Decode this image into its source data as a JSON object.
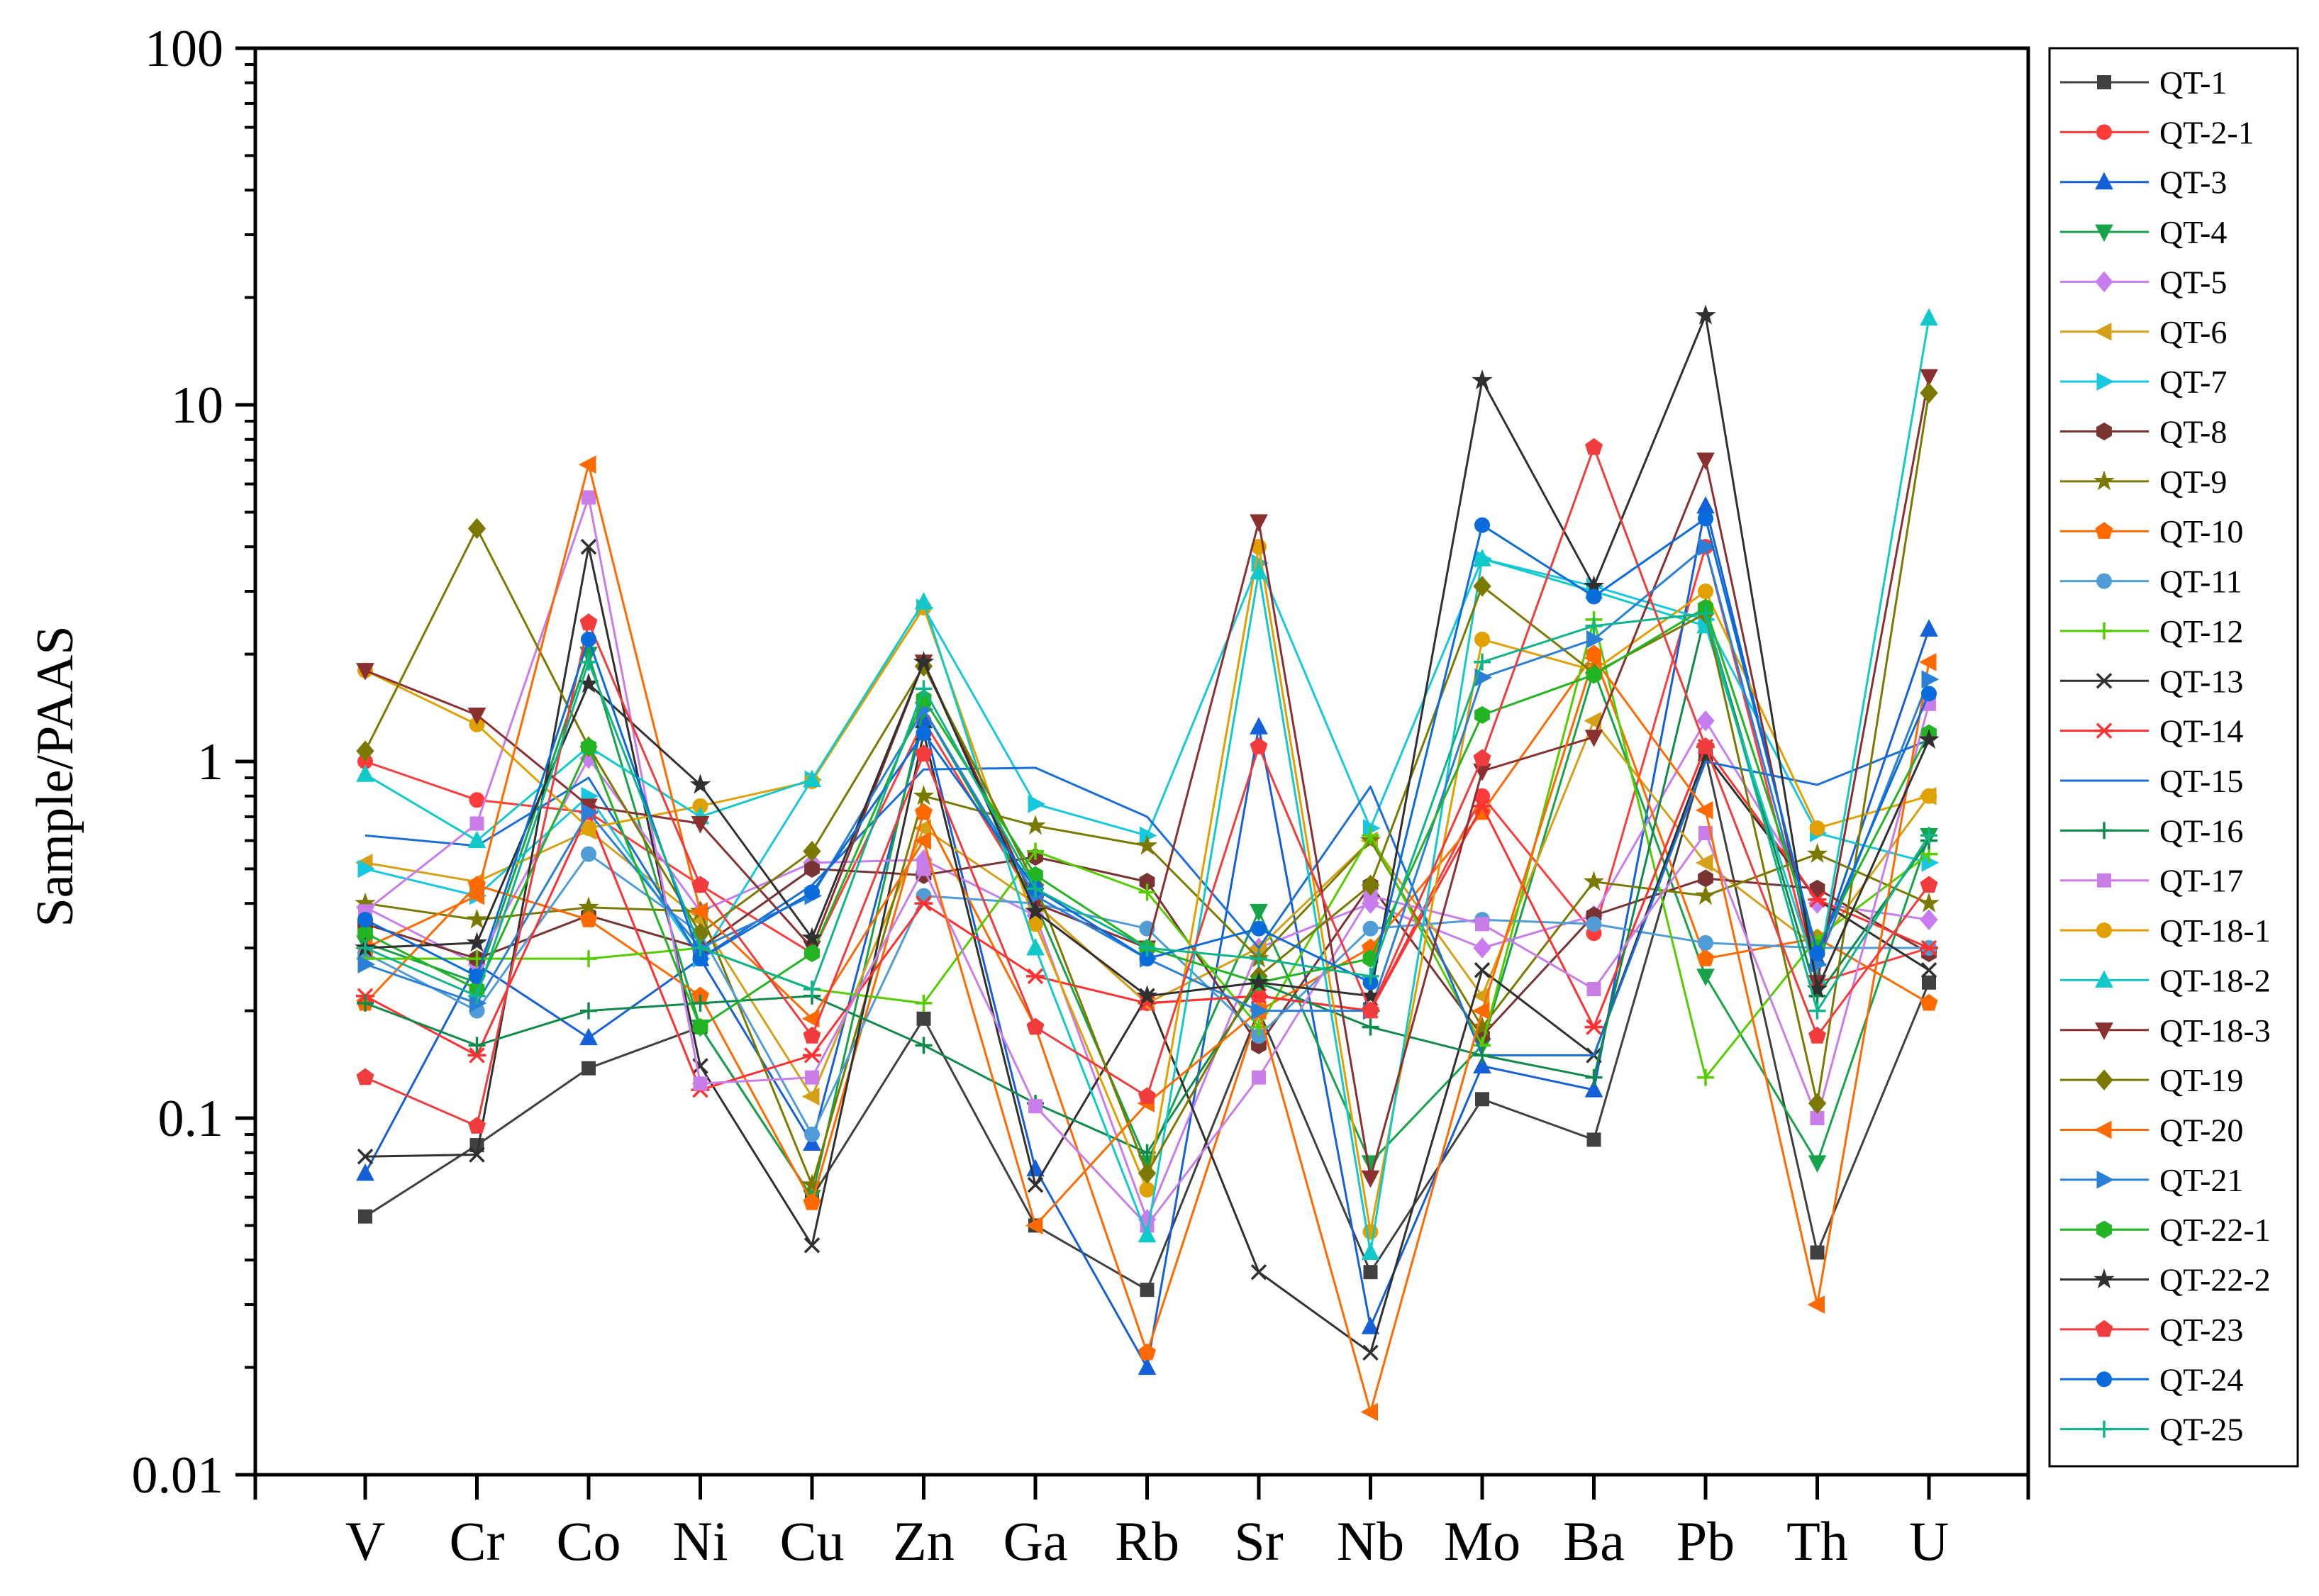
{
  "chart_data": {
    "type": "line",
    "title": "",
    "xlabel": "",
    "ylabel": "Sample/PAAS",
    "yscale": "log",
    "ylim": [
      0.01,
      100
    ],
    "ytick_labels": [
      "0.01",
      "0.1",
      "1",
      "10",
      "100"
    ],
    "categories": [
      "V",
      "Cr",
      "Co",
      "Ni",
      "Cu",
      "Zn",
      "Ga",
      "Rb",
      "Sr",
      "Nb",
      "Mo",
      "Ba",
      "Pb",
      "Th",
      "U"
    ],
    "legend_position": "right",
    "series": [
      {
        "name": "QT-1",
        "color": "#404040",
        "marker": "square",
        "values": [
          0.053,
          0.084,
          0.138,
          0.18,
          0.06,
          0.19,
          0.05,
          0.033,
          0.2,
          0.037,
          0.113,
          0.087,
          1.05,
          0.042,
          0.24
        ]
      },
      {
        "name": "QT-2-1",
        "color": "#ff3b3b",
        "marker": "circle",
        "values": [
          1.0,
          0.78,
          0.72,
          0.45,
          0.29,
          1.3,
          0.4,
          0.21,
          0.22,
          0.2,
          0.8,
          0.33,
          4.0,
          0.24,
          0.3
        ]
      },
      {
        "name": "QT-3",
        "color": "#1560d8",
        "marker": "triangle-up",
        "values": [
          0.07,
          0.27,
          0.168,
          0.28,
          0.085,
          1.3,
          0.072,
          0.02,
          1.25,
          0.026,
          0.14,
          0.12,
          5.2,
          0.28,
          2.35
        ]
      },
      {
        "name": "QT-4",
        "color": "#16a34a",
        "marker": "triangle-down",
        "values": [
          0.31,
          0.24,
          2.0,
          0.18,
          0.06,
          1.4,
          0.4,
          0.075,
          0.38,
          0.075,
          0.16,
          1.8,
          0.25,
          0.075,
          0.62
        ]
      },
      {
        "name": "QT-5",
        "color": "#c77cf0",
        "marker": "diamond",
        "values": [
          0.39,
          0.27,
          1.02,
          0.38,
          0.52,
          0.53,
          0.37,
          0.052,
          0.3,
          0.4,
          0.3,
          0.37,
          1.3,
          0.4,
          0.36
        ]
      },
      {
        "name": "QT-6",
        "color": "#d4a017",
        "marker": "triangle-left",
        "values": [
          0.52,
          0.46,
          0.64,
          0.36,
          0.115,
          0.65,
          0.4,
          0.21,
          0.3,
          0.6,
          0.22,
          1.3,
          0.52,
          0.3,
          0.8
        ]
      },
      {
        "name": "QT-7",
        "color": "#17c7e0",
        "marker": "triangle-right",
        "values": [
          0.5,
          0.42,
          0.8,
          0.28,
          0.89,
          2.7,
          0.76,
          0.62,
          3.6,
          0.65,
          3.7,
          3.1,
          2.5,
          0.63,
          0.52
        ]
      },
      {
        "name": "QT-8",
        "color": "#7a3333",
        "marker": "hexagon",
        "values": [
          0.35,
          0.28,
          0.37,
          0.3,
          0.5,
          0.48,
          0.54,
          0.46,
          0.16,
          0.45,
          0.17,
          0.37,
          0.47,
          0.44,
          0.29
        ]
      },
      {
        "name": "QT-9",
        "color": "#7a7a00",
        "marker": "star",
        "values": [
          0.4,
          0.36,
          0.39,
          0.38,
          0.065,
          0.8,
          0.66,
          0.58,
          0.28,
          0.6,
          0.18,
          0.46,
          0.42,
          0.55,
          0.4
        ]
      },
      {
        "name": "QT-10",
        "color": "#ff6a00",
        "marker": "pentagon",
        "values": [
          0.21,
          0.45,
          0.36,
          0.22,
          0.058,
          0.72,
          0.18,
          0.022,
          0.2,
          0.3,
          0.72,
          2.0,
          0.28,
          0.32,
          0.21
        ]
      },
      {
        "name": "QT-11",
        "color": "#4f9cd6",
        "marker": "circle",
        "values": [
          0.29,
          0.2,
          0.55,
          0.33,
          0.09,
          0.42,
          0.4,
          0.34,
          0.17,
          0.34,
          0.36,
          0.35,
          0.31,
          0.3,
          0.3
        ]
      },
      {
        "name": "QT-12",
        "color": "#55cc00",
        "marker": "plus",
        "values": [
          0.28,
          0.28,
          0.28,
          0.3,
          0.23,
          0.21,
          0.56,
          0.43,
          0.18,
          0.62,
          0.16,
          2.5,
          0.13,
          0.32,
          0.55
        ]
      },
      {
        "name": "QT-13",
        "color": "#303030",
        "marker": "cross",
        "values": [
          0.078,
          0.079,
          4.0,
          0.14,
          0.044,
          1.2,
          0.065,
          0.22,
          0.037,
          0.022,
          0.26,
          0.15,
          1.05,
          0.41,
          0.26
        ]
      },
      {
        "name": "QT-14",
        "color": "#ff3030",
        "marker": "asterisk",
        "values": [
          0.22,
          0.15,
          0.72,
          0.12,
          0.15,
          0.4,
          0.25,
          0.21,
          0.22,
          0.2,
          0.75,
          0.18,
          1.1,
          0.41,
          0.3
        ]
      },
      {
        "name": "QT-15",
        "color": "#1a6fd6",
        "marker": "none",
        "values": [
          0.62,
          0.58,
          0.9,
          0.28,
          0.45,
          0.95,
          0.96,
          0.7,
          0.3,
          0.85,
          0.15,
          0.15,
          1.0,
          0.86,
          1.15
        ]
      },
      {
        "name": "QT-16",
        "color": "#0f8a4a",
        "marker": "plus",
        "values": [
          0.21,
          0.16,
          0.2,
          0.21,
          0.22,
          0.16,
          0.11,
          0.08,
          0.24,
          0.18,
          0.15,
          0.13,
          2.6,
          0.22,
          0.6
        ]
      },
      {
        "name": "QT-17",
        "color": "#c87de8",
        "marker": "square",
        "values": [
          0.38,
          0.67,
          5.5,
          0.125,
          0.13,
          0.5,
          0.108,
          0.05,
          0.13,
          0.42,
          0.35,
          0.23,
          0.63,
          0.1,
          1.45
        ]
      },
      {
        "name": "QT-18-1",
        "color": "#e0a000",
        "marker": "circle",
        "values": [
          1.8,
          1.27,
          0.65,
          0.75,
          0.88,
          2.7,
          0.35,
          0.063,
          4.0,
          0.048,
          2.2,
          1.8,
          3.0,
          0.65,
          0.8
        ]
      },
      {
        "name": "QT-18-2",
        "color": "#12c9c9",
        "marker": "triangle-up",
        "values": [
          0.92,
          0.6,
          1.1,
          0.7,
          0.89,
          2.8,
          0.3,
          0.047,
          3.4,
          0.042,
          3.7,
          3.0,
          2.4,
          0.25,
          17.5
        ]
      },
      {
        "name": "QT-18-3",
        "color": "#8a3030",
        "marker": "triangle-down",
        "values": [
          1.8,
          1.35,
          0.75,
          0.67,
          0.3,
          1.9,
          0.4,
          0.3,
          4.7,
          0.068,
          0.94,
          1.17,
          7.0,
          0.24,
          12.0
        ]
      },
      {
        "name": "QT-19",
        "color": "#7a7a00",
        "marker": "diamond",
        "values": [
          1.07,
          4.5,
          1.1,
          0.33,
          0.56,
          1.85,
          0.45,
          0.07,
          0.25,
          0.45,
          3.1,
          1.77,
          2.6,
          0.11,
          10.8
        ]
      },
      {
        "name": "QT-20",
        "color": "#ff6a00",
        "marker": "triangle-left",
        "values": [
          0.3,
          0.42,
          6.8,
          0.38,
          0.19,
          0.6,
          0.05,
          0.11,
          0.2,
          0.015,
          0.2,
          1.95,
          0.73,
          0.03,
          1.9
        ]
      },
      {
        "name": "QT-21",
        "color": "#2a7fd6",
        "marker": "triangle-right",
        "values": [
          0.27,
          0.21,
          0.72,
          0.3,
          0.42,
          1.4,
          0.42,
          0.28,
          0.2,
          0.2,
          1.72,
          2.2,
          4.0,
          0.27,
          1.7
        ]
      },
      {
        "name": "QT-22-1",
        "color": "#22b422",
        "marker": "hexagon",
        "values": [
          0.33,
          0.23,
          1.1,
          0.18,
          0.29,
          1.5,
          0.48,
          0.3,
          0.24,
          0.28,
          1.35,
          1.75,
          2.7,
          0.3,
          1.2
        ]
      },
      {
        "name": "QT-22-2",
        "color": "#303030",
        "marker": "star",
        "values": [
          0.3,
          0.31,
          1.65,
          0.86,
          0.32,
          1.9,
          0.38,
          0.22,
          0.24,
          0.22,
          11.7,
          3.1,
          17.8,
          0.23,
          1.15
        ]
      },
      {
        "name": "QT-23",
        "color": "#f03c3c",
        "marker": "pentagon",
        "values": [
          0.13,
          0.095,
          2.45,
          0.45,
          0.17,
          1.05,
          0.18,
          0.115,
          1.1,
          0.2,
          1.02,
          7.6,
          1.1,
          0.17,
          0.45
        ]
      },
      {
        "name": "QT-24",
        "color": "#0a6bdc",
        "marker": "circle",
        "values": [
          0.36,
          0.25,
          2.2,
          0.28,
          0.43,
          1.2,
          0.44,
          0.28,
          0.34,
          0.24,
          4.6,
          2.9,
          4.8,
          0.29,
          1.55
        ]
      },
      {
        "name": "QT-25",
        "color": "#10b48a",
        "marker": "plus",
        "values": [
          0.3,
          0.22,
          1.9,
          0.3,
          0.23,
          1.6,
          0.44,
          0.3,
          0.28,
          0.25,
          1.9,
          2.4,
          2.6,
          0.2,
          0.62
        ]
      }
    ]
  }
}
